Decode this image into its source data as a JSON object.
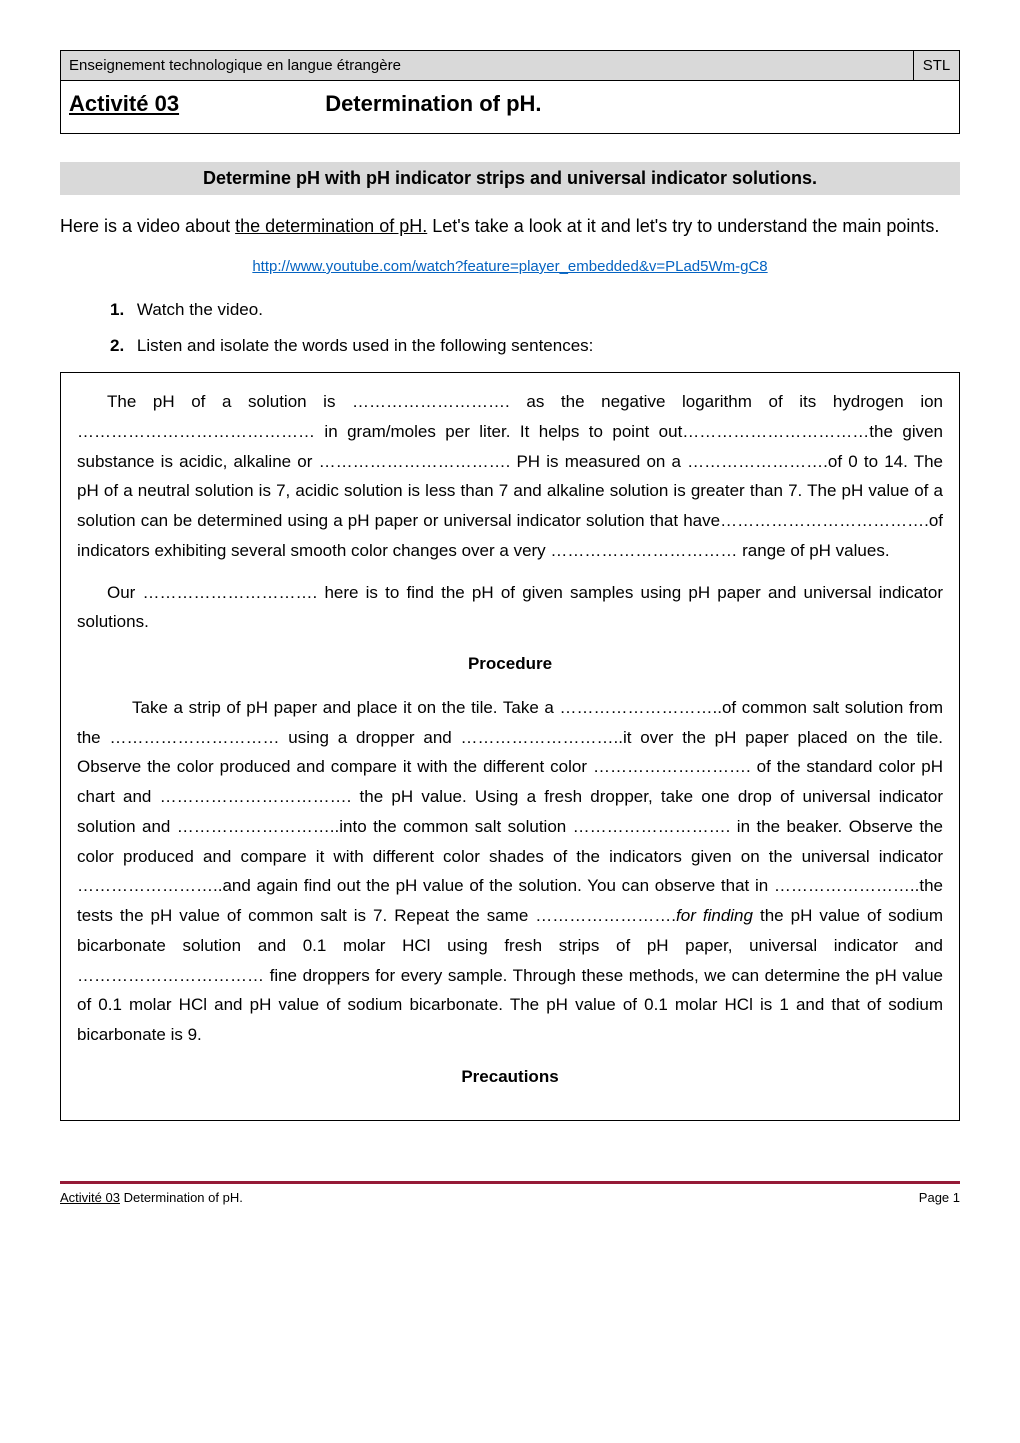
{
  "header": {
    "left": "Enseignement technologique en langue étrangère",
    "right": "STL",
    "activity_label": "Activité 03",
    "title": "Determination of pH."
  },
  "section_heading": "Determine pH with pH indicator strips and universal indicator solutions.",
  "intro": {
    "before": "Here is a video about ",
    "underlined": "the determination of pH.",
    "after": " Let's take a look at it and let's try to understand the main points."
  },
  "link": "http://www.youtube.com/watch?feature=player_embedded&v=PLad5Wm-gC8",
  "list": {
    "item1_num": "1.",
    "item1_text": "Watch the video.",
    "item2_num": "2.",
    "item2_text": "Listen and isolate the words used in the following sentences:"
  },
  "box": {
    "para1": "The pH of a solution is ………………………. as the negative logarithm of its hydrogen ion …………………………………… in gram/moles per liter. It helps to point out……………………………the given substance is acidic, alkaline or ……………………………. PH is measured on a …………………….of 0 to 14. The pH of a neutral solution is 7, acidic solution is less than 7 and alkaline solution is greater than 7. The pH value of a solution can be determined using a pH paper or universal indicator solution that have……………………………….of indicators exhibiting several smooth color changes over a very …………………………… range of pH values.",
    "para2": "Our …………………………. here is to find the pH of given samples using pH paper and universal indicator solutions.",
    "procedure_head": "Procedure",
    "para3_before_italic": "Take a strip of pH paper and place it on the tile. Take a ………………………..of common salt solution from the ………………………… using a dropper and ………………………..it over the pH paper placed on the tile. Observe the color produced and compare it with the different color ………………………. of the standard color pH chart and ……………………………. the pH value. Using a fresh dropper, take one drop of universal indicator solution and ………………………..into the common salt solution ………………………. in the beaker. Observe the color produced and compare it with different color shades of the indicators given on the universal indicator ……………………..and again find out the pH value of the solution. You can observe that in ……………………..the tests the pH value of common salt is 7. Repeat the same …………………….",
    "para3_italic": "for finding",
    "para3_after_italic": " the pH value of sodium bicarbonate solution and 0.1 molar HCl using fresh strips of pH paper, universal indicator and …………………………… fine droppers for every sample. Through these methods, we can determine the pH value of 0.1 molar HCl and pH value of sodium bicarbonate. The pH value of 0.1 molar HCl  is 1 and that of sodium bicarbonate is 9.",
    "precautions_head": "Precautions"
  },
  "footer": {
    "left_underlined": "Activité 03",
    "left_rest": " Determination of pH.",
    "right": "Page 1"
  },
  "colors": {
    "header_bg": "#d9d9d9",
    "link_color": "#0563c1",
    "footer_border": "#951a37",
    "text": "#000000",
    "page_bg": "#ffffff"
  },
  "typography": {
    "body_fontsize": 17,
    "title_fontsize": 22,
    "banner_fontsize": 18,
    "footer_fontsize": 13
  }
}
